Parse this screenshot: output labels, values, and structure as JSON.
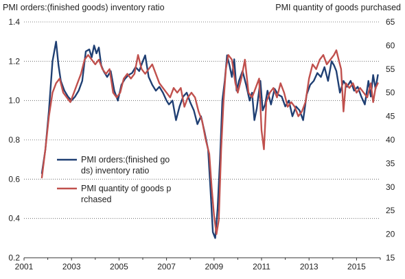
{
  "chart_data": {
    "type": "line",
    "left_axis_title": "PMI orders:(finished goods) inventory ratio",
    "right_axis_title": "PMI quantity of goods purchased",
    "x_ticks": [
      "2001",
      "2003",
      "2005",
      "2007",
      "2009",
      "2011",
      "2013",
      "2015"
    ],
    "x_range": [
      2001.0,
      2016.0
    ],
    "left_axis": {
      "range": [
        0.2,
        1.4
      ],
      "ticks": [
        "0.2",
        "0.4",
        "0.6",
        "0.8",
        "1.0",
        "1.2",
        "1.4"
      ]
    },
    "right_axis": {
      "range": [
        15,
        65
      ],
      "ticks": [
        "15",
        "20",
        "25",
        "30",
        "35",
        "40",
        "45",
        "50",
        "55",
        "60",
        "65"
      ]
    },
    "grid": "horizontal dotted",
    "legend_position": "left-center",
    "series": [
      {
        "name": "PMI orders:(finished goods) inventory ratio",
        "axis": "left",
        "color": "#1f3f73",
        "x": [
          2001.75,
          2001.9,
          2002.05,
          2002.2,
          2002.35,
          2002.45,
          2002.55,
          2002.7,
          2002.85,
          2003.0,
          2003.15,
          2003.3,
          2003.45,
          2003.6,
          2003.75,
          2003.85,
          2003.95,
          2004.05,
          2004.15,
          2004.25,
          2004.35,
          2004.5,
          2004.65,
          2004.8,
          2004.95,
          2005.1,
          2005.25,
          2005.4,
          2005.55,
          2005.7,
          2005.85,
          2006.0,
          2006.1,
          2006.25,
          2006.4,
          2006.55,
          2006.7,
          2006.85,
          2007.0,
          2007.1,
          2007.25,
          2007.4,
          2007.55,
          2007.7,
          2007.85,
          2008.0,
          2008.15,
          2008.3,
          2008.45,
          2008.6,
          2008.75,
          2008.85,
          2008.95,
          2009.05,
          2009.15,
          2009.25,
          2009.35,
          2009.45,
          2009.55,
          2009.65,
          2009.75,
          2009.85,
          2009.95,
          2010.05,
          2010.2,
          2010.35,
          2010.5,
          2010.6,
          2010.7,
          2010.8,
          2010.95,
          2011.05,
          2011.15,
          2011.25,
          2011.4,
          2011.55,
          2011.7,
          2011.85,
          2012.0,
          2012.15,
          2012.3,
          2012.45,
          2012.6,
          2012.75,
          2012.9,
          2013.05,
          2013.2,
          2013.35,
          2013.5,
          2013.65,
          2013.8,
          2013.95,
          2014.05,
          2014.15,
          2014.3,
          2014.45,
          2014.6,
          2014.75,
          2014.9,
          2015.05,
          2015.2,
          2015.35,
          2015.5,
          2015.6,
          2015.7,
          2015.8,
          2015.9
        ],
        "y": [
          0.63,
          0.75,
          0.95,
          1.2,
          1.3,
          1.18,
          1.1,
          1.05,
          1.02,
          1.0,
          1.02,
          1.05,
          1.1,
          1.25,
          1.26,
          1.22,
          1.28,
          1.24,
          1.27,
          1.18,
          1.15,
          1.12,
          1.15,
          1.05,
          1.0,
          1.08,
          1.11,
          1.13,
          1.14,
          1.17,
          1.15,
          1.2,
          1.23,
          1.12,
          1.08,
          1.05,
          1.07,
          1.04,
          1.0,
          0.98,
          1.0,
          0.9,
          0.97,
          1.02,
          1.04,
          0.99,
          0.95,
          0.88,
          0.92,
          0.84,
          0.75,
          0.55,
          0.33,
          0.3,
          0.45,
          0.7,
          1.0,
          1.1,
          1.23,
          1.18,
          1.12,
          1.21,
          1.05,
          1.1,
          1.15,
          1.08,
          1.0,
          1.04,
          0.9,
          0.96,
          1.1,
          0.95,
          0.98,
          1.05,
          0.98,
          1.06,
          1.03,
          1.02,
          0.97,
          1.0,
          0.92,
          0.97,
          0.95,
          0.9,
          1.03,
          1.08,
          1.1,
          1.14,
          1.12,
          1.17,
          1.1,
          1.2,
          1.18,
          1.15,
          1.04,
          1.1,
          1.07,
          1.1,
          1.05,
          1.07,
          1.02,
          0.98,
          1.1,
          1.02,
          1.13,
          1.06,
          1.13
        ]
      },
      {
        "name": "PMI quantity of goods purchased",
        "axis": "right",
        "color": "#c0504d",
        "x": [
          2001.75,
          2001.9,
          2002.05,
          2002.2,
          2002.35,
          2002.5,
          2002.65,
          2002.8,
          2002.95,
          2003.1,
          2003.25,
          2003.4,
          2003.55,
          2003.7,
          2003.85,
          2004.0,
          2004.15,
          2004.3,
          2004.45,
          2004.6,
          2004.75,
          2004.9,
          2005.05,
          2005.2,
          2005.35,
          2005.5,
          2005.65,
          2005.8,
          2005.95,
          2006.1,
          2006.25,
          2006.4,
          2006.55,
          2006.7,
          2006.85,
          2007.0,
          2007.15,
          2007.3,
          2007.45,
          2007.6,
          2007.75,
          2007.9,
          2008.05,
          2008.2,
          2008.35,
          2008.5,
          2008.65,
          2008.8,
          2008.9,
          2009.0,
          2009.1,
          2009.2,
          2009.3,
          2009.4,
          2009.5,
          2009.6,
          2009.75,
          2009.9,
          2010.0,
          2010.15,
          2010.3,
          2010.45,
          2010.6,
          2010.75,
          2010.9,
          2011.0,
          2011.1,
          2011.2,
          2011.35,
          2011.5,
          2011.65,
          2011.8,
          2011.95,
          2012.1,
          2012.25,
          2012.4,
          2012.55,
          2012.7,
          2012.85,
          2013.0,
          2013.15,
          2013.3,
          2013.45,
          2013.6,
          2013.75,
          2013.9,
          2014.05,
          2014.15,
          2014.25,
          2014.35,
          2014.45,
          2014.55,
          2014.7,
          2014.85,
          2015.0,
          2015.15,
          2015.3,
          2015.45,
          2015.6,
          2015.7,
          2015.8,
          2015.9
        ],
        "y": [
          32,
          38,
          45,
          50,
          52,
          53,
          50,
          49,
          48,
          50,
          52,
          54,
          57,
          58,
          57,
          56,
          57,
          55,
          54,
          55,
          50,
          49,
          50,
          53,
          54,
          53,
          54,
          58,
          55,
          54,
          55,
          56,
          54,
          52,
          51,
          50,
          49,
          51,
          50,
          51,
          47,
          49,
          50,
          49,
          46,
          44,
          40,
          37,
          30,
          24,
          20,
          23,
          38,
          48,
          55,
          58,
          57,
          52,
          50,
          53,
          57,
          50,
          49,
          51,
          53,
          42,
          38,
          48,
          50,
          51,
          49,
          52,
          50,
          47,
          48,
          47,
          45,
          46,
          48,
          53,
          56,
          55,
          57,
          58,
          56,
          57,
          58,
          59,
          57,
          55,
          46,
          52,
          51,
          52,
          50,
          51,
          50,
          49,
          52,
          48,
          51,
          52
        ]
      }
    ]
  }
}
